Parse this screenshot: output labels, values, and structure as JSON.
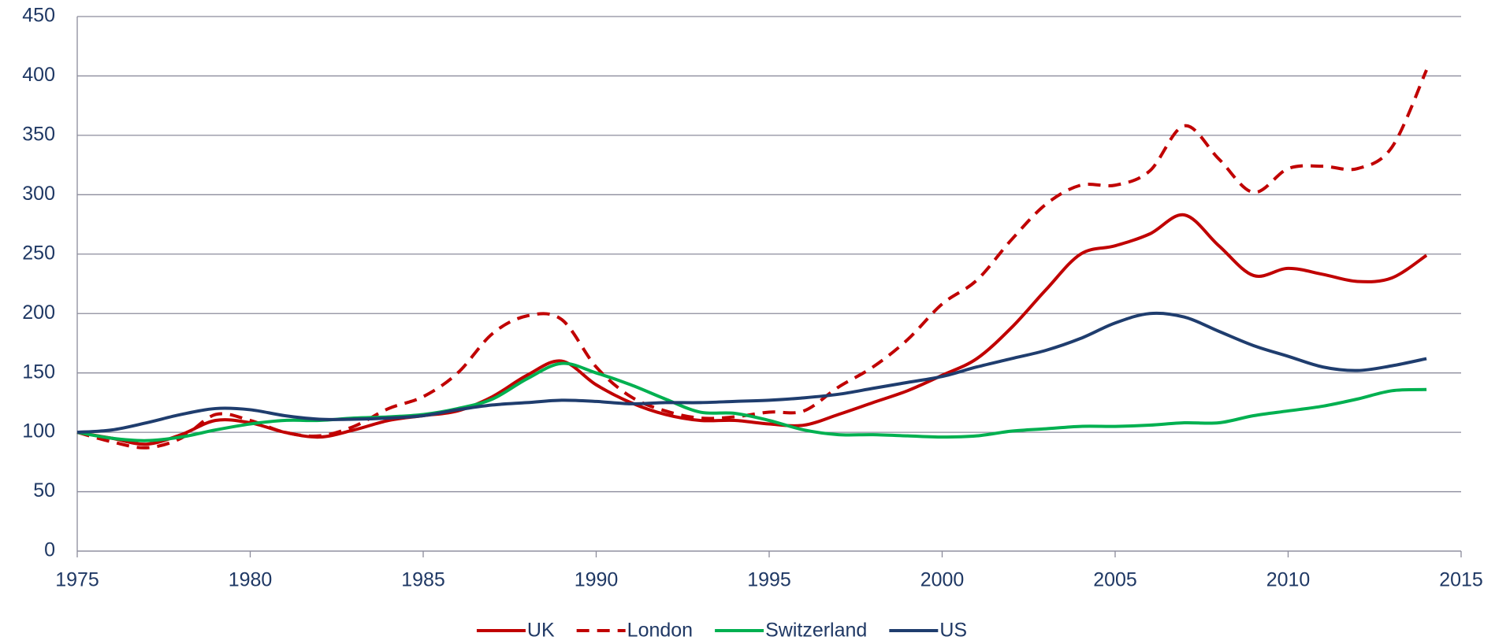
{
  "chart_data": {
    "type": "line",
    "x": [
      1975,
      1976,
      1977,
      1978,
      1979,
      1980,
      1981,
      1982,
      1983,
      1984,
      1985,
      1986,
      1987,
      1988,
      1989,
      1990,
      1991,
      1992,
      1993,
      1994,
      1995,
      1996,
      1997,
      1998,
      1999,
      2000,
      2001,
      2002,
      2003,
      2004,
      2005,
      2006,
      2007,
      2008,
      2009,
      2010,
      2011,
      2012,
      2013,
      2014
    ],
    "series": [
      {
        "name": "UK",
        "color": "#c00000",
        "dashed": false,
        "values": [
          100,
          95,
          90,
          98,
          110,
          108,
          100,
          96,
          102,
          110,
          114,
          118,
          130,
          148,
          160,
          140,
          125,
          115,
          110,
          110,
          107,
          106,
          115,
          125,
          135,
          148,
          162,
          188,
          220,
          250,
          257,
          267,
          283,
          257,
          232,
          238,
          233,
          227,
          230,
          249
        ]
      },
      {
        "name": "London",
        "color": "#c00000",
        "dashed": true,
        "values": [
          100,
          92,
          87,
          95,
          115,
          110,
          100,
          97,
          105,
          120,
          130,
          150,
          183,
          198,
          195,
          155,
          130,
          118,
          112,
          113,
          117,
          118,
          138,
          155,
          178,
          208,
          228,
          262,
          292,
          308,
          308,
          320,
          358,
          330,
          302,
          322,
          324,
          322,
          340,
          405
        ]
      },
      {
        "name": "Switzerland",
        "color": "#00b050",
        "dashed": false,
        "values": [
          100,
          95,
          93,
          96,
          102,
          107,
          110,
          110,
          112,
          113,
          115,
          120,
          128,
          145,
          158,
          150,
          140,
          128,
          117,
          116,
          110,
          102,
          98,
          98,
          97,
          96,
          97,
          101,
          103,
          105,
          105,
          106,
          108,
          108,
          114,
          118,
          122,
          128,
          135,
          136
        ]
      },
      {
        "name": "US",
        "color": "#1f3d6e",
        "dashed": false,
        "values": [
          100,
          102,
          108,
          115,
          120,
          119,
          114,
          111,
          111,
          112,
          114,
          119,
          123,
          125,
          127,
          126,
          124,
          125,
          125,
          126,
          127,
          129,
          132,
          137,
          142,
          147,
          155,
          162,
          169,
          179,
          192,
          200,
          197,
          185,
          173,
          164,
          155,
          152,
          156,
          162
        ]
      }
    ],
    "xlim": [
      1975,
      2015
    ],
    "xticks": [
      1975,
      1980,
      1985,
      1990,
      1995,
      2000,
      2005,
      2010,
      2015
    ],
    "ylim": [
      0,
      450
    ],
    "yticks": [
      0,
      50,
      100,
      150,
      200,
      250,
      300,
      350,
      400,
      450
    ],
    "grid": true,
    "legend": "bottom"
  }
}
